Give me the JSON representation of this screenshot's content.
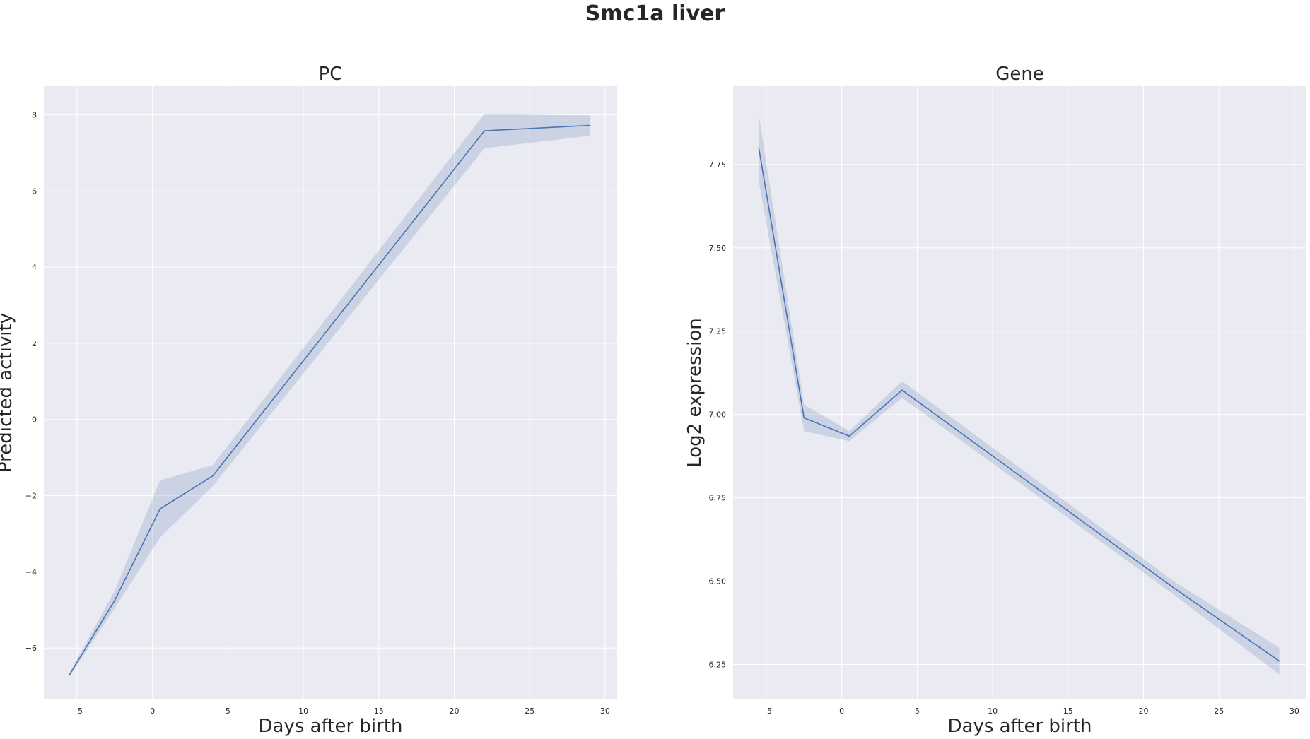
{
  "figure": {
    "title": "Smc1a liver"
  },
  "colors": {
    "line": "#4c72b0",
    "band": "#4c72b0",
    "background": "#eaeaf2",
    "grid": "#ffffff"
  },
  "chart_data": [
    {
      "type": "line",
      "title": "PC",
      "xlabel": "Days after birth",
      "ylabel": "Predicted activity",
      "xlim": [
        -7.2,
        30.8
      ],
      "ylim": [
        -7.35,
        8.75
      ],
      "xticks": [
        -5,
        0,
        5,
        10,
        15,
        20,
        25,
        30
      ],
      "xtick_labels": [
        "−5",
        "0",
        "5",
        "10",
        "15",
        "20",
        "25",
        "30"
      ],
      "yticks": [
        -6,
        -4,
        -2,
        0,
        2,
        4,
        6,
        8
      ],
      "ytick_labels": [
        "−6",
        "−4",
        "−2",
        "0",
        "2",
        "4",
        "6",
        "8"
      ],
      "grid": true,
      "series": [
        {
          "x": [
            -5.5,
            -2.5,
            0.5,
            4,
            22,
            29
          ],
          "y": [
            -6.7,
            -4.75,
            -2.35,
            -1.48,
            7.58,
            7.72
          ],
          "ci_low": [
            -6.75,
            -4.95,
            -3.1,
            -1.75,
            7.12,
            7.45
          ],
          "ci_high": [
            -6.65,
            -4.5,
            -1.6,
            -1.2,
            8.02,
            7.98
          ]
        }
      ]
    },
    {
      "type": "line",
      "title": "Gene",
      "xlabel": "Days after birth",
      "ylabel": "Log2 expression",
      "xlim": [
        -7.2,
        30.8
      ],
      "ylim": [
        6.145,
        7.985
      ],
      "xticks": [
        -5,
        0,
        5,
        10,
        15,
        20,
        25,
        30
      ],
      "xtick_labels": [
        "−5",
        "0",
        "5",
        "10",
        "15",
        "20",
        "25",
        "30"
      ],
      "yticks": [
        6.25,
        6.5,
        6.75,
        7.0,
        7.25,
        7.5,
        7.75
      ],
      "ytick_labels": [
        "6.25",
        "6.50",
        "6.75",
        "7.00",
        "7.25",
        "7.50",
        "7.75"
      ],
      "grid": true,
      "series": [
        {
          "x": [
            -5.5,
            -2.5,
            0.5,
            4,
            22,
            29
          ],
          "y": [
            7.8,
            6.99,
            6.935,
            7.073,
            6.48,
            6.26
          ],
          "ci_low": [
            7.7,
            6.95,
            6.92,
            7.05,
            6.46,
            6.22
          ],
          "ci_high": [
            7.9,
            7.03,
            6.95,
            7.1,
            6.5,
            6.3
          ]
        }
      ]
    }
  ]
}
